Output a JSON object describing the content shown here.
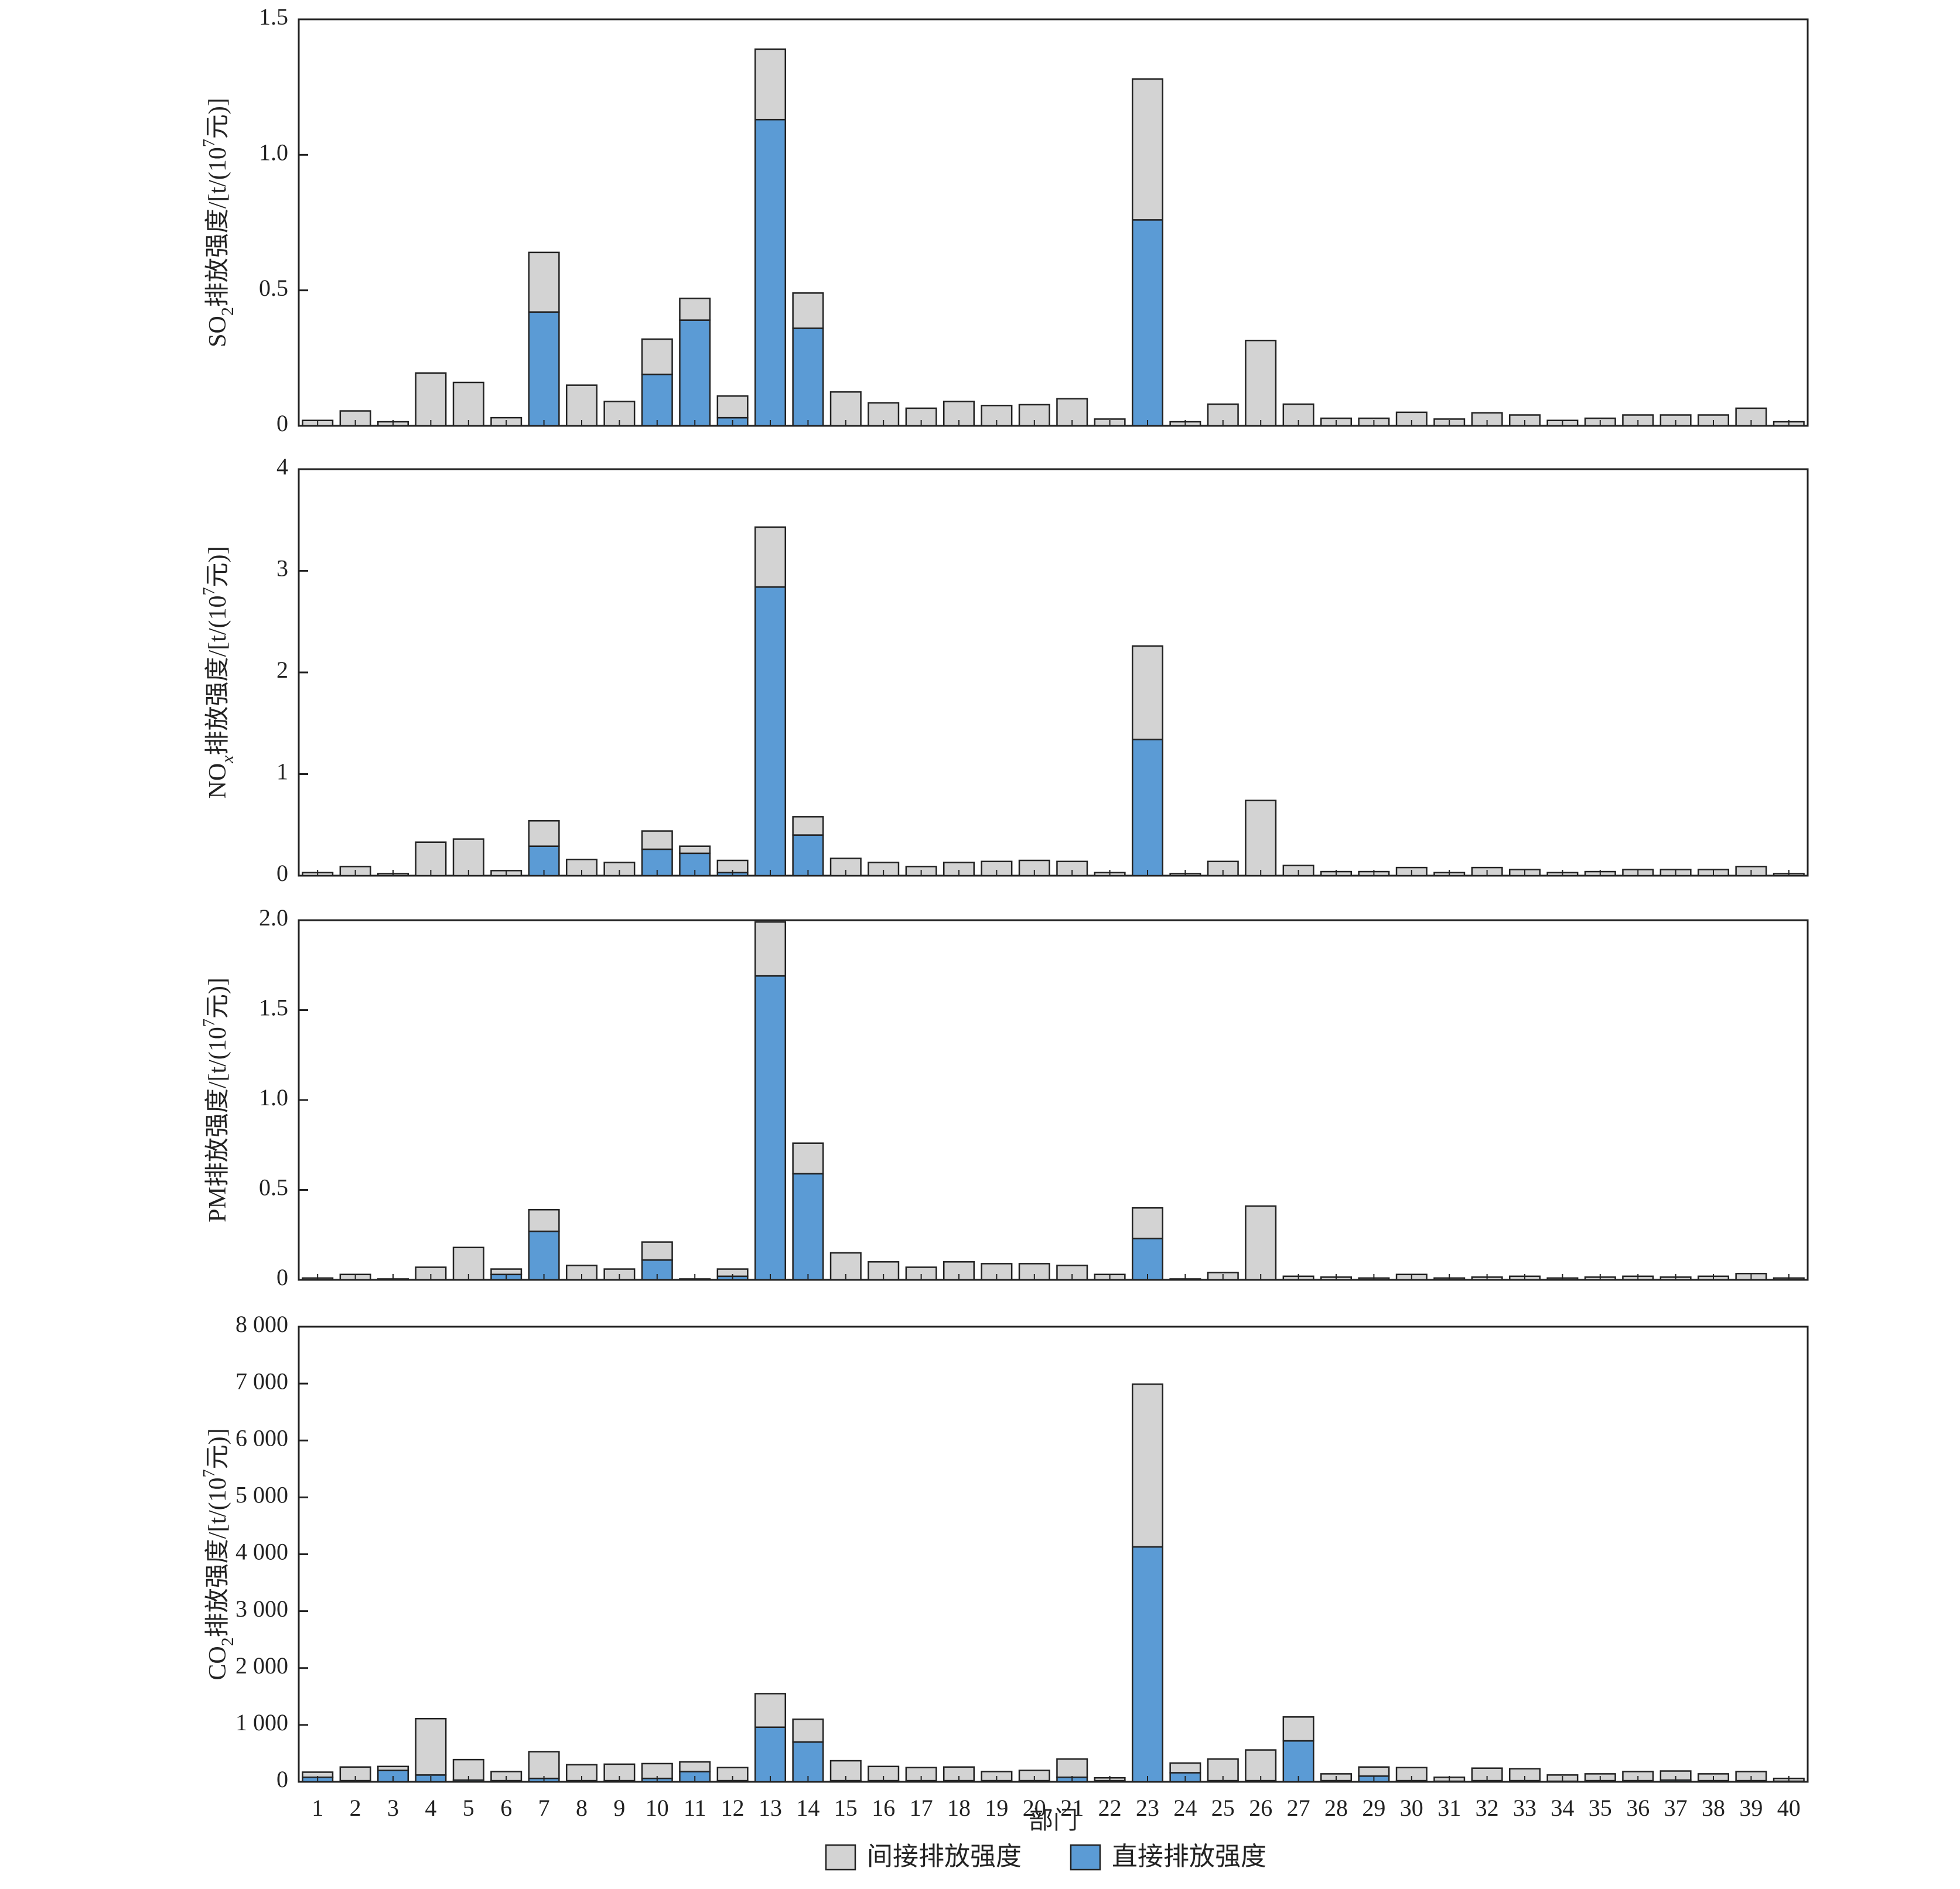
{
  "colors": {
    "indirect": "#d3d3d3",
    "direct": "#5b9bd5",
    "frame": "#222222"
  },
  "xlabel": "部门",
  "legend": {
    "placement": "bottom-center",
    "items": [
      {
        "label": "间接排放强度",
        "color_key": "indirect"
      },
      {
        "label": "直接排放强度",
        "color_key": "direct"
      }
    ]
  },
  "chart_data": [
    {
      "type": "bar",
      "stacked": true,
      "ylabel": "SO2排放强度/[t/(107元)]",
      "ylabel_parts": {
        "prefix": "SO",
        "sub": "2",
        "mid": "排放强度/[t/(10",
        "sup": "7",
        "suffix": "元)]"
      },
      "ylim": [
        0,
        1.5
      ],
      "yticks": [
        0,
        0.5,
        1.0,
        1.5
      ],
      "ytick_labels": [
        "0",
        "0.5",
        "1.0",
        "1.5"
      ],
      "categories": [
        "1",
        "2",
        "3",
        "4",
        "5",
        "6",
        "7",
        "8",
        "9",
        "10",
        "11",
        "12",
        "13",
        "14",
        "15",
        "16",
        "17",
        "18",
        "19",
        "20",
        "21",
        "22",
        "23",
        "24",
        "25",
        "26",
        "27",
        "28",
        "29",
        "30",
        "31",
        "32",
        "33",
        "34",
        "35",
        "36",
        "37",
        "38",
        "39",
        "40"
      ],
      "series": [
        {
          "name": "直接排放强度",
          "color_key": "direct",
          "values": [
            0,
            0,
            0,
            0,
            0,
            0,
            0.42,
            0,
            0,
            0.19,
            0.39,
            0.03,
            1.13,
            0.36,
            0,
            0,
            0,
            0,
            0,
            0,
            0,
            0,
            0.76,
            0,
            0,
            0,
            0,
            0,
            0,
            0,
            0,
            0,
            0,
            0,
            0,
            0,
            0,
            0,
            0,
            0
          ]
        },
        {
          "name": "间接排放强度",
          "color_key": "indirect",
          "values": [
            0.02,
            0.055,
            0.015,
            0.195,
            0.16,
            0.03,
            0.22,
            0.15,
            0.09,
            0.13,
            0.08,
            0.08,
            0.26,
            0.13,
            0.125,
            0.085,
            0.065,
            0.09,
            0.075,
            0.078,
            0.1,
            0.025,
            0.52,
            0.015,
            0.08,
            0.315,
            0.08,
            0.028,
            0.028,
            0.05,
            0.025,
            0.048,
            0.04,
            0.02,
            0.028,
            0.04,
            0.04,
            0.04,
            0.065,
            0.015
          ]
        }
      ]
    },
    {
      "type": "bar",
      "stacked": true,
      "ylabel": "NOx排放强度/[t/(107元)]",
      "ylabel_parts": {
        "prefix": "NO",
        "sub": "x",
        "sub_italic": true,
        "mid": "排放强度/[t/(10",
        "sup": "7",
        "suffix": "元)]"
      },
      "ylim": [
        0,
        4
      ],
      "yticks": [
        0,
        1,
        2,
        3,
        4
      ],
      "ytick_labels": [
        "0",
        "1",
        "2",
        "3",
        "4"
      ],
      "categories": [
        "1",
        "2",
        "3",
        "4",
        "5",
        "6",
        "7",
        "8",
        "9",
        "10",
        "11",
        "12",
        "13",
        "14",
        "15",
        "16",
        "17",
        "18",
        "19",
        "20",
        "21",
        "22",
        "23",
        "24",
        "25",
        "26",
        "27",
        "28",
        "29",
        "30",
        "31",
        "32",
        "33",
        "34",
        "35",
        "36",
        "37",
        "38",
        "39",
        "40"
      ],
      "series": [
        {
          "name": "直接排放强度",
          "color_key": "direct",
          "values": [
            0,
            0,
            0,
            0,
            0,
            0,
            0.29,
            0,
            0,
            0.26,
            0.22,
            0.03,
            2.84,
            0.4,
            0,
            0,
            0,
            0,
            0,
            0,
            0,
            0,
            1.34,
            0,
            0,
            0,
            0,
            0,
            0,
            0,
            0,
            0,
            0,
            0,
            0,
            0,
            0,
            0,
            0,
            0
          ]
        },
        {
          "name": "间接排放强度",
          "color_key": "indirect",
          "values": [
            0.03,
            0.09,
            0.02,
            0.33,
            0.36,
            0.05,
            0.25,
            0.16,
            0.13,
            0.18,
            0.07,
            0.12,
            0.59,
            0.18,
            0.17,
            0.13,
            0.09,
            0.13,
            0.14,
            0.15,
            0.14,
            0.03,
            0.92,
            0.02,
            0.14,
            0.74,
            0.1,
            0.04,
            0.04,
            0.08,
            0.03,
            0.08,
            0.06,
            0.03,
            0.04,
            0.06,
            0.06,
            0.06,
            0.09,
            0.02
          ]
        }
      ]
    },
    {
      "type": "bar",
      "stacked": true,
      "ylabel": "PM排放强度/[t/(107元)]",
      "ylabel_parts": {
        "prefix": "PM",
        "sub": "",
        "mid": "排放强度/[t/(10",
        "sup": "7",
        "suffix": "元)]"
      },
      "ylim": [
        0,
        2.0
      ],
      "yticks": [
        0,
        0.5,
        1.0,
        1.5,
        2.0
      ],
      "ytick_labels": [
        "0",
        "0.5",
        "1.0",
        "1.5",
        "2.0"
      ],
      "categories": [
        "1",
        "2",
        "3",
        "4",
        "5",
        "6",
        "7",
        "8",
        "9",
        "10",
        "11",
        "12",
        "13",
        "14",
        "15",
        "16",
        "17",
        "18",
        "19",
        "20",
        "21",
        "22",
        "23",
        "24",
        "25",
        "26",
        "27",
        "28",
        "29",
        "30",
        "31",
        "32",
        "33",
        "34",
        "35",
        "36",
        "37",
        "38",
        "39",
        "40"
      ],
      "series": [
        {
          "name": "直接排放强度",
          "color_key": "direct",
          "values": [
            0,
            0,
            0,
            0,
            0,
            0.03,
            0.27,
            0,
            0,
            0.11,
            0,
            0.02,
            1.69,
            0.59,
            0,
            0,
            0,
            0,
            0,
            0,
            0,
            0,
            0.23,
            0,
            0,
            0,
            0,
            0,
            0,
            0,
            0,
            0,
            0,
            0,
            0,
            0,
            0,
            0,
            0,
            0
          ]
        },
        {
          "name": "间接排放强度",
          "color_key": "indirect",
          "values": [
            0.01,
            0.03,
            0.005,
            0.07,
            0.18,
            0.03,
            0.12,
            0.08,
            0.06,
            0.1,
            0.005,
            0.04,
            0.3,
            0.17,
            0.15,
            0.1,
            0.07,
            0.1,
            0.09,
            0.09,
            0.08,
            0.03,
            0.17,
            0.005,
            0.04,
            0.41,
            0.02,
            0.015,
            0.01,
            0.03,
            0.01,
            0.015,
            0.02,
            0.01,
            0.015,
            0.02,
            0.015,
            0.02,
            0.035,
            0.01
          ]
        }
      ]
    },
    {
      "type": "bar",
      "stacked": true,
      "ylabel": "CO2排放强度/[t/(107元)]",
      "ylabel_parts": {
        "prefix": "CO",
        "sub": "2",
        "mid": "排放强度/[t/(10",
        "sup": "7",
        "suffix": "元)]"
      },
      "ylim": [
        0,
        8000
      ],
      "yticks": [
        0,
        1000,
        2000,
        3000,
        4000,
        5000,
        6000,
        7000,
        8000
      ],
      "ytick_labels": [
        "0",
        "1 000",
        "2 000",
        "3 000",
        "4 000",
        "5 000",
        "6 000",
        "7 000",
        "8 000"
      ],
      "categories": [
        "1",
        "2",
        "3",
        "4",
        "5",
        "6",
        "7",
        "8",
        "9",
        "10",
        "11",
        "12",
        "13",
        "14",
        "15",
        "16",
        "17",
        "18",
        "19",
        "20",
        "21",
        "22",
        "23",
        "24",
        "25",
        "26",
        "27",
        "28",
        "29",
        "30",
        "31",
        "32",
        "33",
        "34",
        "35",
        "36",
        "37",
        "38",
        "39",
        "40"
      ],
      "series": [
        {
          "name": "直接排放强度",
          "color_key": "direct",
          "values": [
            80,
            20,
            200,
            120,
            30,
            20,
            60,
            20,
            20,
            60,
            180,
            20,
            960,
            700,
            20,
            20,
            20,
            20,
            20,
            20,
            80,
            20,
            4130,
            160,
            20,
            20,
            720,
            20,
            100,
            20,
            10,
            20,
            20,
            10,
            20,
            20,
            30,
            20,
            20,
            10
          ]
        },
        {
          "name": "间接排放强度",
          "color_key": "indirect",
          "values": [
            90,
            240,
            70,
            990,
            360,
            160,
            470,
            280,
            290,
            260,
            170,
            230,
            590,
            400,
            350,
            250,
            230,
            240,
            160,
            180,
            320,
            50,
            2860,
            170,
            380,
            540,
            420,
            120,
            160,
            230,
            70,
            220,
            210,
            110,
            120,
            160,
            160,
            120,
            160,
            50
          ]
        }
      ],
      "show_x_ticklabels": true
    }
  ]
}
